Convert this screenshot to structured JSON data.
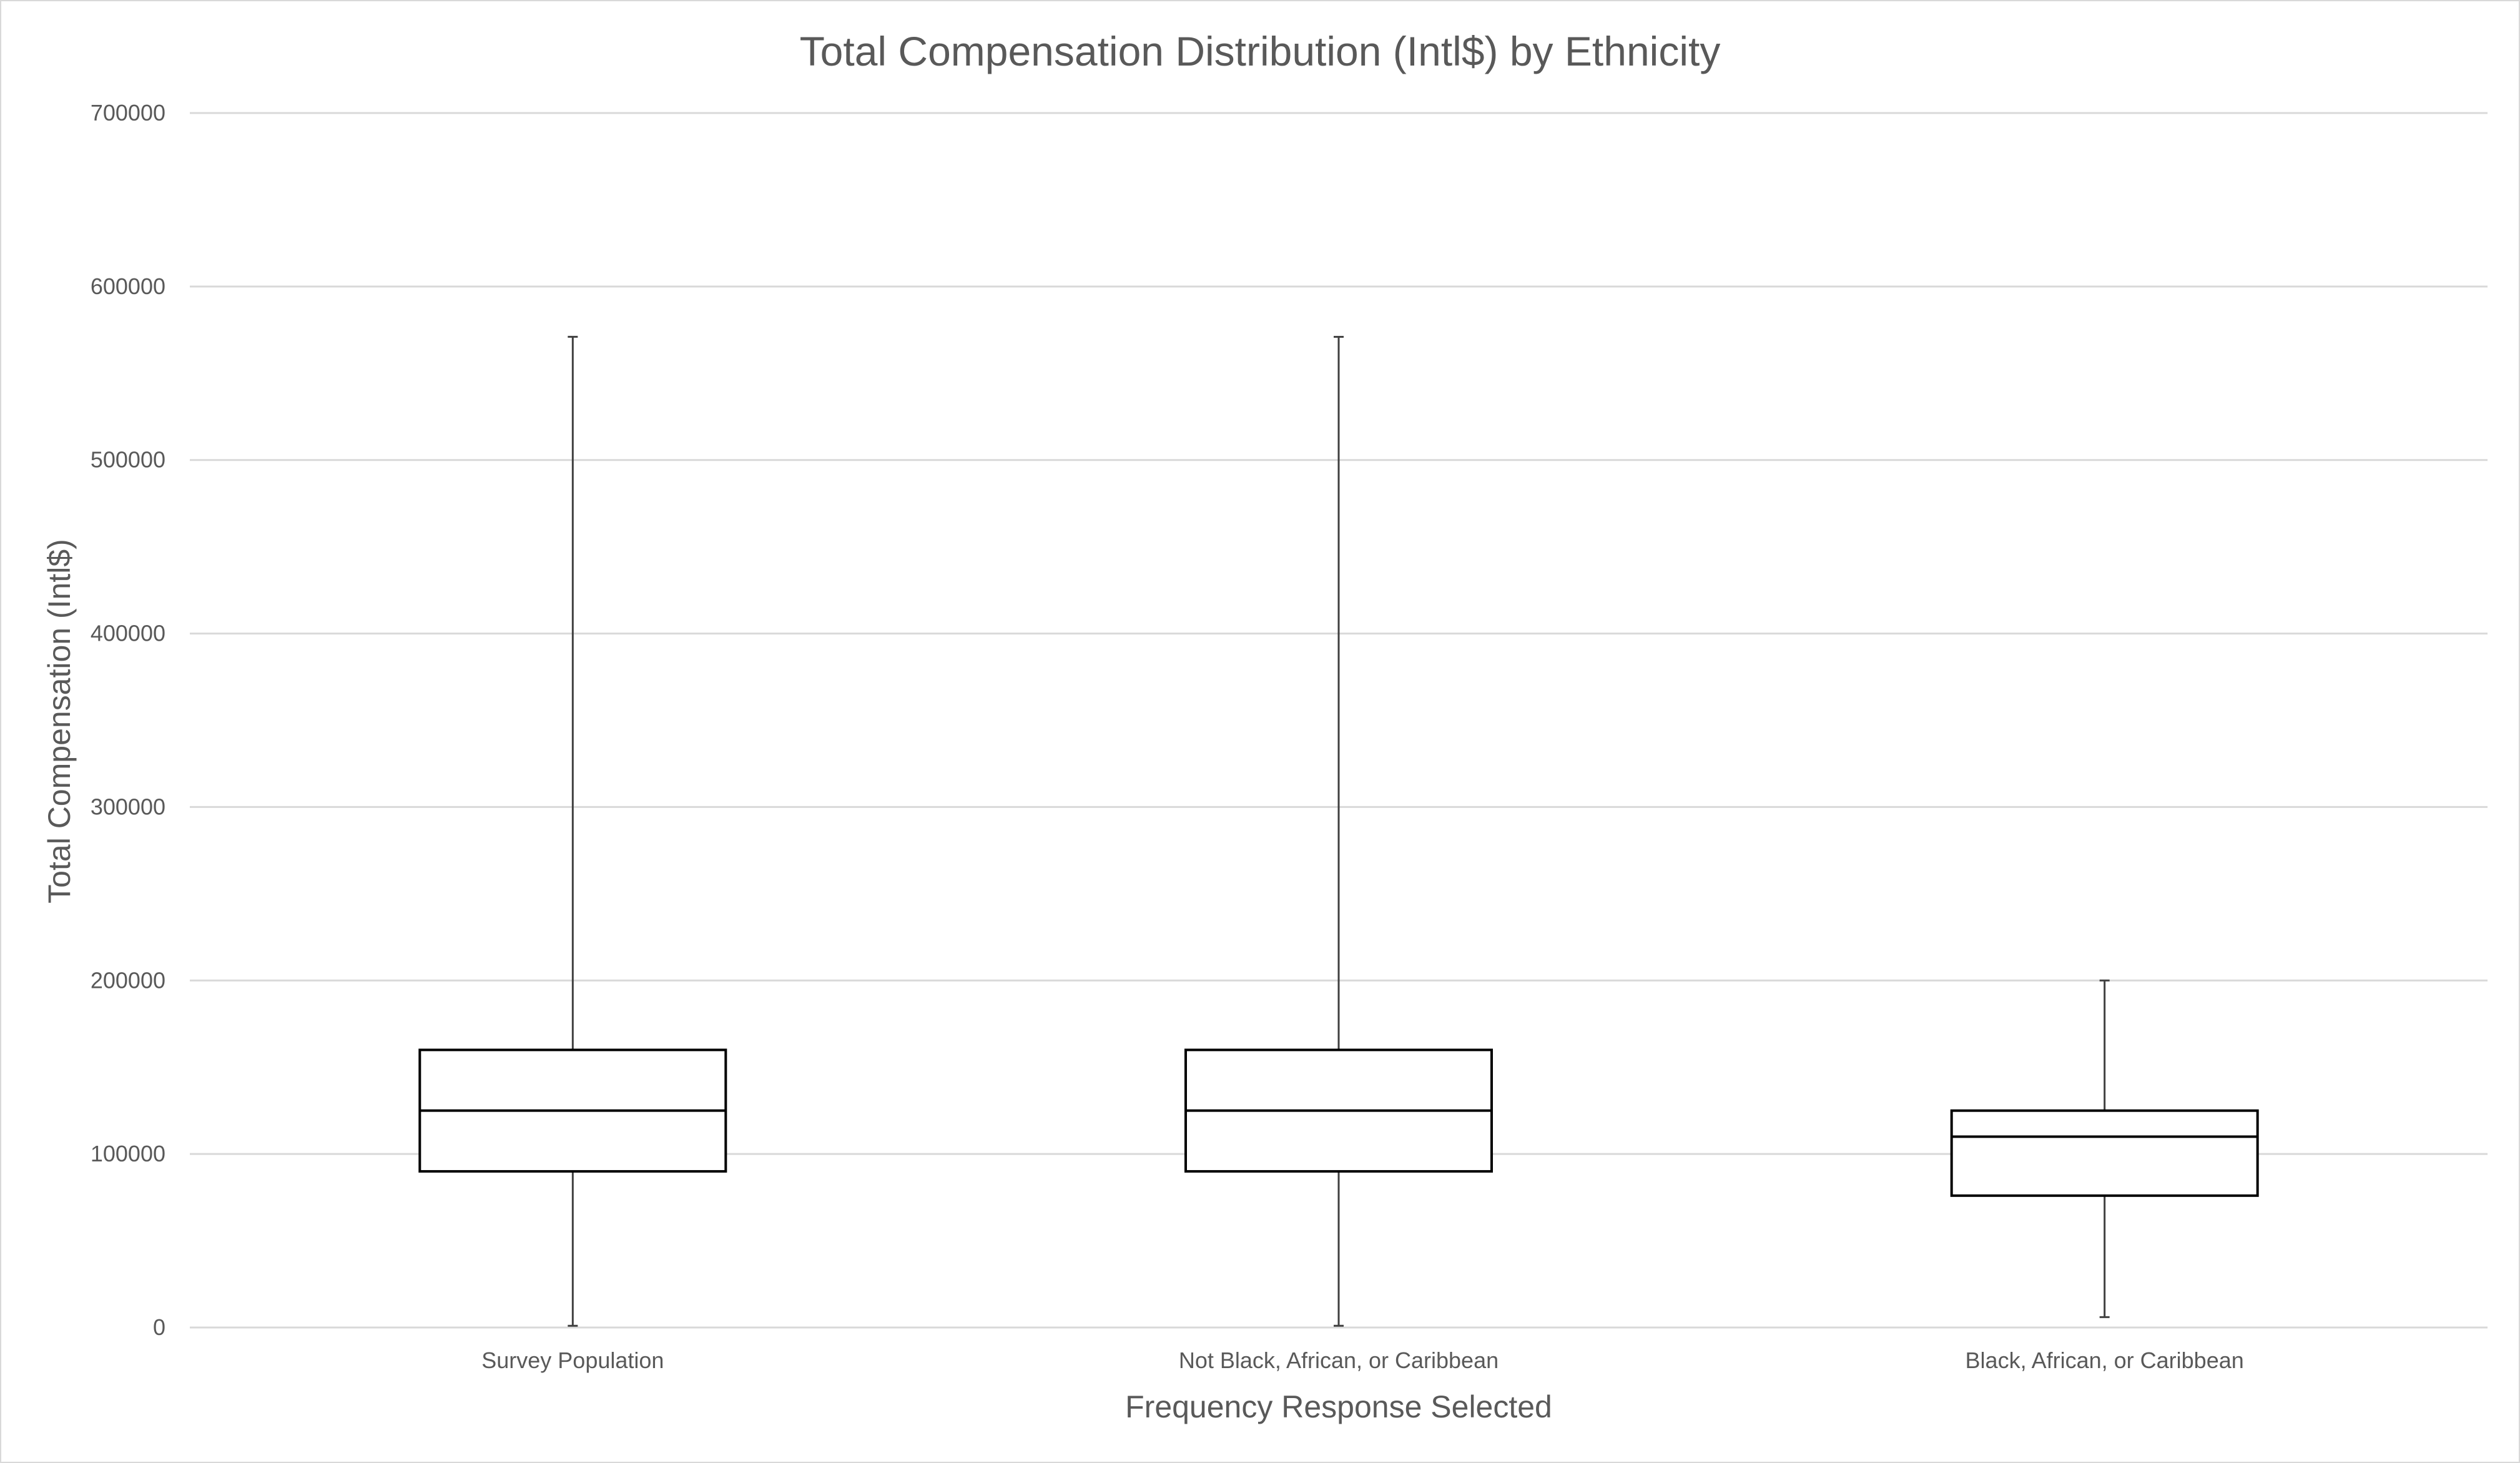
{
  "chart_data": {
    "type": "box",
    "title": "Total Compensation Distribution (Intl$) by Ethnicity",
    "xlabel": "Frequency Response Selected",
    "ylabel": "Total Compensation (Intl$)",
    "ylim": [
      0,
      700000
    ],
    "yticks": [
      "0",
      "100000",
      "200000",
      "300000",
      "400000",
      "500000",
      "600000",
      "700000"
    ],
    "ytick_values": [
      0,
      100000,
      200000,
      300000,
      400000,
      500000,
      600000,
      700000
    ],
    "grid": true,
    "categories": [
      "Survey Population",
      "Not Black, African, or Caribbean",
      "Black, African, or Caribbean"
    ],
    "boxes": [
      {
        "category": "Survey Population",
        "min": 1000,
        "q1": 90000,
        "median": 125000,
        "q3": 160000,
        "max": 571000
      },
      {
        "category": "Not Black, African, or Caribbean",
        "min": 1000,
        "q1": 90000,
        "median": 125000,
        "q3": 160000,
        "max": 571000
      },
      {
        "category": "Black, African, or Caribbean",
        "min": 6000,
        "q1": 76000,
        "median": 110000,
        "q3": 125000,
        "max": 200000
      }
    ],
    "colors": {
      "box_stroke": "#000000",
      "box_fill": "#ffffff",
      "whisker": "#404040",
      "grid": "#d9d9d9",
      "text": "#595959"
    }
  }
}
